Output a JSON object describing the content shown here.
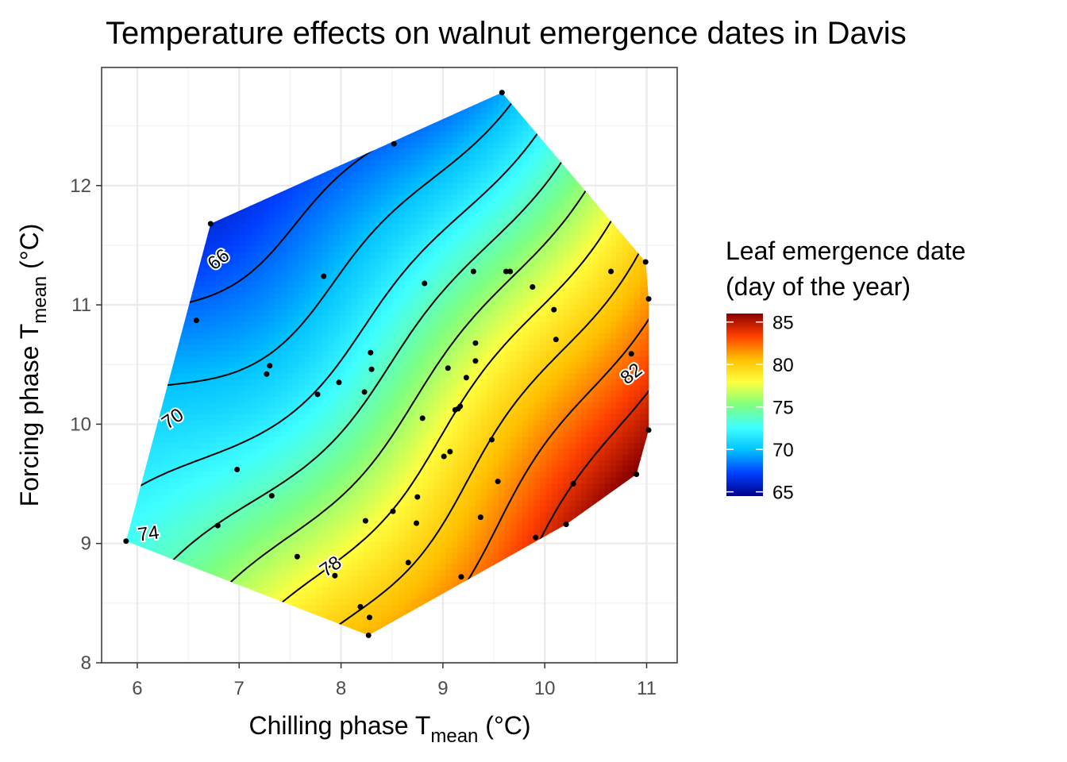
{
  "chart_data": {
    "type": "heatmap",
    "title": "Temperature effects on walnut emergence dates in Davis",
    "xlabel": {
      "main": "Chilling phase T",
      "sub": "mean",
      "unit": " (°C)"
    },
    "ylabel": {
      "main": "Forcing phase T",
      "sub": "mean",
      "unit": " (°C)"
    },
    "xlim": [
      5.65,
      11.3
    ],
    "ylim": [
      8.0,
      12.99
    ],
    "x_ticks": [
      "6",
      "7",
      "8",
      "9",
      "10",
      "11"
    ],
    "y_ticks": [
      "8",
      "9",
      "10",
      "11",
      "12"
    ],
    "legend": {
      "title_line1": "Leaf emergence date",
      "title_line2": "(day of the year)",
      "ticks": [
        "85",
        "80",
        "75",
        "70",
        "65"
      ],
      "range": [
        64.5,
        86
      ],
      "placement": "right"
    },
    "colors": [
      "#00008b",
      "#0040ff",
      "#00c0ff",
      "#3fffff",
      "#7fff7f",
      "#ffff3f",
      "#ffbf00",
      "#ff4000",
      "#8b0000"
    ],
    "surface": {
      "center": [
        8.5,
        10.4
      ],
      "base": 74.4,
      "slope_x": 3.0,
      "slope_y": -3.2
    },
    "contour_labels": [
      "66",
      "70",
      "74",
      "78",
      "82"
    ],
    "contour_levels": [
      66,
      68,
      70,
      72,
      74,
      76,
      78,
      80,
      82,
      84
    ],
    "points": [
      [
        9.58,
        12.78
      ],
      [
        8.52,
        12.35
      ],
      [
        6.72,
        11.68
      ],
      [
        7.83,
        11.24
      ],
      [
        8.82,
        11.18
      ],
      [
        9.3,
        11.28
      ],
      [
        9.62,
        11.28
      ],
      [
        9.66,
        11.28
      ],
      [
        9.88,
        11.15
      ],
      [
        10.65,
        11.28
      ],
      [
        10.99,
        11.36
      ],
      [
        11.02,
        11.05
      ],
      [
        6.58,
        10.87
      ],
      [
        10.09,
        10.96
      ],
      [
        10.11,
        10.71
      ],
      [
        8.29,
        10.6
      ],
      [
        9.32,
        10.68
      ],
      [
        7.3,
        10.49
      ],
      [
        7.27,
        10.42
      ],
      [
        8.3,
        10.46
      ],
      [
        9.05,
        10.47
      ],
      [
        9.32,
        10.53
      ],
      [
        9.23,
        10.39
      ],
      [
        7.98,
        10.35
      ],
      [
        7.77,
        10.25
      ],
      [
        8.23,
        10.27
      ],
      [
        9.12,
        10.12
      ],
      [
        9.17,
        10.15
      ],
      [
        9.15,
        10.13
      ],
      [
        8.8,
        10.05
      ],
      [
        10.85,
        10.59
      ],
      [
        11.02,
        9.95
      ],
      [
        9.48,
        9.87
      ],
      [
        9.01,
        9.73
      ],
      [
        9.07,
        9.77
      ],
      [
        6.98,
        9.62
      ],
      [
        10.9,
        9.58
      ],
      [
        9.54,
        9.52
      ],
      [
        10.28,
        9.5
      ],
      [
        7.32,
        9.4
      ],
      [
        8.75,
        9.39
      ],
      [
        8.51,
        9.27
      ],
      [
        9.37,
        9.22
      ],
      [
        8.24,
        9.19
      ],
      [
        8.74,
        9.17
      ],
      [
        6.79,
        9.15
      ],
      [
        10.21,
        9.16
      ],
      [
        5.89,
        9.02
      ],
      [
        9.91,
        9.05
      ],
      [
        7.57,
        8.89
      ],
      [
        8.66,
        8.84
      ],
      [
        7.94,
        8.73
      ],
      [
        9.18,
        8.72
      ],
      [
        8.19,
        8.47
      ],
      [
        8.28,
        8.38
      ],
      [
        8.27,
        8.23
      ]
    ]
  }
}
